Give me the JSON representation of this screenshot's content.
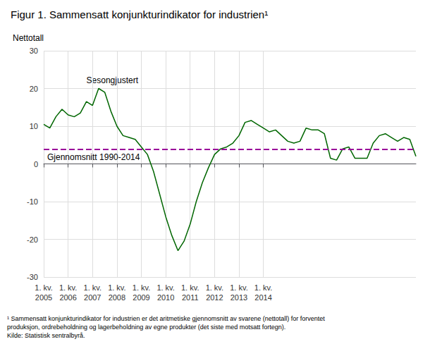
{
  "chart_data": {
    "type": "line",
    "title": "Figur 1. Sammensatt konjunkturindikator for industrien¹",
    "y_label": "Nettotall",
    "categories": [
      "1. kv.\n2005",
      null,
      null,
      null,
      "1. kv.\n2006",
      null,
      null,
      null,
      "1. kv.\n2007",
      null,
      null,
      null,
      "1. kv.\n2008",
      null,
      null,
      null,
      "1. kv.\n2009",
      null,
      null,
      null,
      "1. kv.\n2010",
      null,
      null,
      null,
      "1. kv.\n2011",
      null,
      null,
      null,
      "1. kv.\n2012",
      null,
      null,
      null,
      "1. kv.\n2013",
      null,
      null,
      null,
      "1. kv.\n2014",
      null,
      null,
      null,
      null,
      null,
      null,
      null,
      null,
      null,
      null,
      null,
      null,
      null,
      null,
      null,
      null,
      null,
      null,
      null,
      null,
      null,
      null,
      null,
      null,
      null
    ],
    "series": [
      {
        "name": "Sesongjustert",
        "color": "#006600",
        "values": [
          10.5,
          9.5,
          12.5,
          14.5,
          13.0,
          12.5,
          13.5,
          16.5,
          15.5,
          20.0,
          19.0,
          14.0,
          10.0,
          7.5,
          7.0,
          6.5,
          4.5,
          2.5,
          -2.0,
          -8.0,
          -14.0,
          -19.0,
          -23.0,
          -20.5,
          -16.0,
          -10.0,
          -5.0,
          -1.0,
          2.5,
          4.0,
          4.5,
          5.5,
          7.5,
          11.0,
          11.5,
          10.5,
          9.5,
          8.5,
          9.0,
          7.5,
          6.0,
          5.5,
          6.0,
          9.5,
          9.0,
          9.0,
          8.0,
          1.5,
          1.0,
          4.0,
          4.5,
          1.5,
          1.5,
          1.5,
          5.5,
          7.5,
          8.0,
          7.0,
          6.0,
          7.0,
          6.5,
          2.0
        ]
      }
    ],
    "reference_line": {
      "value": 3.8,
      "label": "Gjennomsnitt 1990-2014",
      "color": "#990099",
      "line_style": "dashed"
    },
    "ylim": [
      -30,
      30
    ],
    "yticks": [
      -30,
      -20,
      -10,
      0,
      10,
      20,
      30
    ],
    "grid": true,
    "footnote": "¹ Sammensatt konjunkturindikator for industrien er det aritmetiske gjennomsnitt av svarene (nettotall) for forventet\nproduksjon, ordrebeholdning og lagerbeholdning av egne produkter (det siste med motsatt fortegn).\nKilde: Statistisk sentralbyrå."
  }
}
